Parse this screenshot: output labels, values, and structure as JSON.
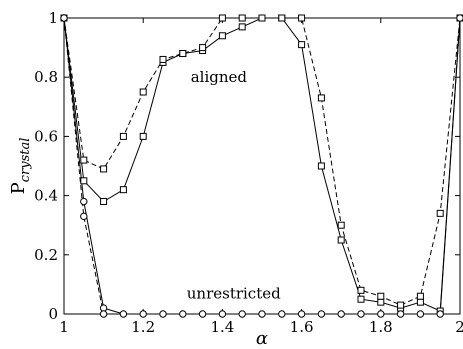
{
  "chart_data": {
    "type": "line",
    "xlabel": "α",
    "ylabel": {
      "main": "P",
      "sub": "crystal"
    },
    "xlim": [
      1,
      2
    ],
    "ylim": [
      0,
      1
    ],
    "xticks": [
      "1",
      "1.2",
      "1.4",
      "1.6",
      "1.8",
      "2"
    ],
    "yticks": [
      "0",
      "0.2",
      "0.4",
      "0.6",
      "0.8",
      "1"
    ],
    "annotations": [
      {
        "text": "aligned",
        "x": 1.32,
        "y": 0.8
      },
      {
        "text": "unrestricted",
        "x": 1.31,
        "y": 0.07
      }
    ],
    "series": [
      {
        "style": "solid",
        "marker": "square",
        "x": [
          1.0,
          1.05,
          1.1,
          1.15,
          1.2,
          1.25,
          1.3,
          1.35,
          1.4,
          1.45,
          1.5,
          1.55,
          1.6,
          1.65,
          1.7,
          1.75,
          1.8,
          1.85,
          1.9,
          1.95,
          2.0
        ],
        "y": [
          1.0,
          0.45,
          0.38,
          0.42,
          0.6,
          0.85,
          0.88,
          0.89,
          0.94,
          0.97,
          1.0,
          1.0,
          0.91,
          0.5,
          0.25,
          0.05,
          0.04,
          0.02,
          0.04,
          0.01,
          1.0
        ]
      },
      {
        "style": "dashed",
        "marker": "square",
        "x": [
          1.0,
          1.05,
          1.1,
          1.15,
          1.2,
          1.25,
          1.3,
          1.35,
          1.4,
          1.45,
          1.5,
          1.55,
          1.6,
          1.65,
          1.7,
          1.75,
          1.8,
          1.85,
          1.9,
          1.95,
          2.0
        ],
        "y": [
          1.0,
          0.52,
          0.49,
          0.6,
          0.75,
          0.86,
          0.88,
          0.9,
          1.0,
          1.0,
          1.0,
          1.0,
          1.0,
          0.73,
          0.3,
          0.08,
          0.06,
          0.03,
          0.06,
          0.34,
          1.0
        ]
      },
      {
        "style": "solid",
        "marker": "circle",
        "x": [
          1.0,
          1.05,
          1.1,
          1.15,
          1.2,
          1.25,
          1.3,
          1.35,
          1.4,
          1.45,
          1.5,
          1.55,
          1.6,
          1.65,
          1.7,
          1.75,
          1.8,
          1.85,
          1.9,
          1.95,
          2.0
        ],
        "y": [
          1.0,
          0.38,
          0.02,
          0.0,
          0.0,
          0.0,
          0.0,
          0.0,
          0.0,
          0.0,
          0.0,
          0.0,
          0.0,
          0.0,
          0.0,
          0.0,
          0.0,
          0.0,
          0.0,
          0.0,
          1.0
        ]
      },
      {
        "style": "dashed",
        "marker": "circle",
        "x": [
          1.0,
          1.05,
          1.1
        ],
        "y": [
          1.0,
          0.33,
          0.0
        ]
      }
    ]
  }
}
